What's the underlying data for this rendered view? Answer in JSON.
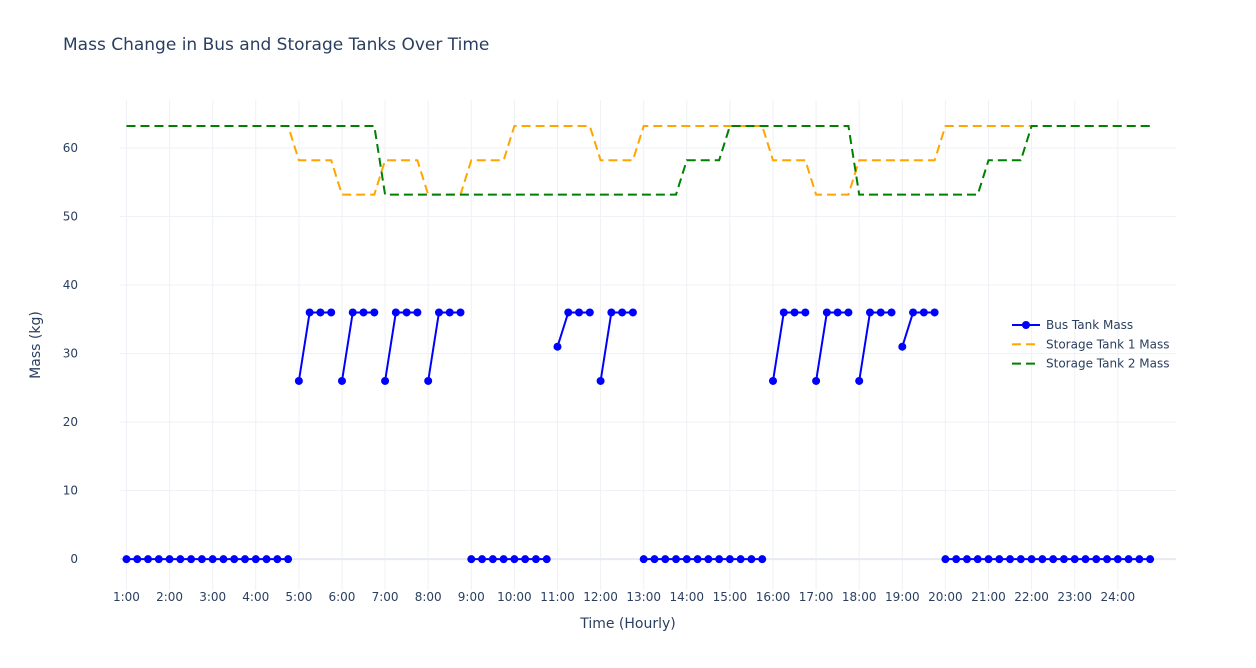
{
  "chart_data": {
    "type": "line",
    "title": "Mass Change in Bus and Storage Tanks Over Time",
    "xlabel": "Time (Hourly)",
    "ylabel": "Mass (kg)",
    "ylim": [
      -4.5,
      67
    ],
    "yticks": [
      0,
      10,
      20,
      30,
      40,
      50,
      60
    ],
    "x_unit": "hour (step 0.25)",
    "xlim": [
      0.85,
      25.35
    ],
    "xticks": [
      {
        "x": 1,
        "label": "1:00"
      },
      {
        "x": 2,
        "label": "2:00"
      },
      {
        "x": 3,
        "label": "3:00"
      },
      {
        "x": 4,
        "label": "4:00"
      },
      {
        "x": 5,
        "label": "5:00"
      },
      {
        "x": 6,
        "label": "6:00"
      },
      {
        "x": 7,
        "label": "7:00"
      },
      {
        "x": 8,
        "label": "8:00"
      },
      {
        "x": 9,
        "label": "9:00"
      },
      {
        "x": 10,
        "label": "10:00"
      },
      {
        "x": 11,
        "label": "11:00"
      },
      {
        "x": 12,
        "label": "12:00"
      },
      {
        "x": 13,
        "label": "13:00"
      },
      {
        "x": 14,
        "label": "14:00"
      },
      {
        "x": 15,
        "label": "15:00"
      },
      {
        "x": 16,
        "label": "16:00"
      },
      {
        "x": 17,
        "label": "17:00"
      },
      {
        "x": 18,
        "label": "18:00"
      },
      {
        "x": 19,
        "label": "19:00"
      },
      {
        "x": 20,
        "label": "20:00"
      },
      {
        "x": 21,
        "label": "21:00"
      },
      {
        "x": 22,
        "label": "22:00"
      },
      {
        "x": 23,
        "label": "23:00"
      },
      {
        "x": 24,
        "label": "24:00"
      }
    ],
    "grid": true,
    "legend_position": "right",
    "series": [
      {
        "name": "Bus Tank Mass",
        "color": "#0000ff",
        "style": "solid-with-markers",
        "points": [
          [
            1,
            0
          ],
          [
            1.25,
            0
          ],
          [
            1.5,
            0
          ],
          [
            1.75,
            0
          ],
          [
            2,
            0
          ],
          [
            2.25,
            0
          ],
          [
            2.5,
            0
          ],
          [
            2.75,
            0
          ],
          [
            3,
            0
          ],
          [
            3.25,
            0
          ],
          [
            3.5,
            0
          ],
          [
            3.75,
            0
          ],
          [
            4,
            0
          ],
          [
            4.25,
            0
          ],
          [
            4.5,
            0
          ],
          [
            4.75,
            0
          ],
          null,
          [
            5,
            26
          ],
          [
            5.25,
            36
          ],
          [
            5.5,
            36
          ],
          [
            5.75,
            36
          ],
          null,
          [
            6,
            26
          ],
          [
            6.25,
            36
          ],
          [
            6.5,
            36
          ],
          [
            6.75,
            36
          ],
          null,
          [
            7,
            26
          ],
          [
            7.25,
            36
          ],
          [
            7.5,
            36
          ],
          [
            7.75,
            36
          ],
          null,
          [
            8,
            26
          ],
          [
            8.25,
            36
          ],
          [
            8.5,
            36
          ],
          [
            8.75,
            36
          ],
          null,
          [
            9,
            0
          ],
          [
            9.25,
            0
          ],
          [
            9.5,
            0
          ],
          [
            9.75,
            0
          ],
          [
            10,
            0
          ],
          [
            10.25,
            0
          ],
          [
            10.5,
            0
          ],
          [
            10.75,
            0
          ],
          null,
          [
            11,
            31
          ],
          [
            11.25,
            36
          ],
          [
            11.5,
            36
          ],
          [
            11.75,
            36
          ],
          null,
          [
            12,
            26
          ],
          [
            12.25,
            36
          ],
          [
            12.5,
            36
          ],
          [
            12.75,
            36
          ],
          null,
          [
            13,
            0
          ],
          [
            13.25,
            0
          ],
          [
            13.5,
            0
          ],
          [
            13.75,
            0
          ],
          [
            14,
            0
          ],
          [
            14.25,
            0
          ],
          [
            14.5,
            0
          ],
          [
            14.75,
            0
          ],
          [
            15,
            0
          ],
          [
            15.25,
            0
          ],
          [
            15.5,
            0
          ],
          [
            15.75,
            0
          ],
          null,
          [
            16,
            26
          ],
          [
            16.25,
            36
          ],
          [
            16.5,
            36
          ],
          [
            16.75,
            36
          ],
          null,
          [
            17,
            26
          ],
          [
            17.25,
            36
          ],
          [
            17.5,
            36
          ],
          [
            17.75,
            36
          ],
          null,
          [
            18,
            26
          ],
          [
            18.25,
            36
          ],
          [
            18.5,
            36
          ],
          [
            18.75,
            36
          ],
          null,
          [
            19,
            31
          ],
          [
            19.25,
            36
          ],
          [
            19.5,
            36
          ],
          [
            19.75,
            36
          ],
          null,
          [
            20,
            0
          ],
          [
            20.25,
            0
          ],
          [
            20.5,
            0
          ],
          [
            20.75,
            0
          ],
          [
            21,
            0
          ],
          [
            21.25,
            0
          ],
          [
            21.5,
            0
          ],
          [
            21.75,
            0
          ],
          [
            22,
            0
          ],
          [
            22.25,
            0
          ],
          [
            22.5,
            0
          ],
          [
            22.75,
            0
          ],
          [
            23,
            0
          ],
          [
            23.25,
            0
          ],
          [
            23.5,
            0
          ],
          [
            23.75,
            0
          ],
          [
            24,
            0
          ],
          [
            24.25,
            0
          ],
          [
            24.5,
            0
          ],
          [
            24.75,
            0
          ]
        ]
      },
      {
        "name": "Storage Tank 1 Mass",
        "color": "#ffa500",
        "style": "dash",
        "points": [
          [
            1,
            63.2
          ],
          [
            4.75,
            63.2
          ],
          [
            5,
            58.2
          ],
          [
            5.75,
            58.2
          ],
          [
            6,
            53.2
          ],
          [
            6.75,
            53.2
          ],
          [
            7,
            58.2
          ],
          [
            7.75,
            58.2
          ],
          [
            8,
            53.2
          ],
          [
            8.75,
            53.2
          ],
          [
            9,
            58.2
          ],
          [
            9.75,
            58.2
          ],
          [
            10,
            63.2
          ],
          [
            11.75,
            63.2
          ],
          [
            12,
            58.2
          ],
          [
            12.75,
            58.2
          ],
          [
            13,
            63.2
          ],
          [
            15.75,
            63.2
          ],
          [
            16,
            58.2
          ],
          [
            16.75,
            58.2
          ],
          [
            17,
            53.2
          ],
          [
            17.75,
            53.2
          ],
          [
            18,
            58.2
          ],
          [
            19.75,
            58.2
          ],
          [
            20,
            63.2
          ],
          [
            24.75,
            63.2
          ]
        ]
      },
      {
        "name": "Storage Tank 2 Mass",
        "color": "#008000",
        "style": "dash",
        "points": [
          [
            1,
            63.2
          ],
          [
            6.75,
            63.2
          ],
          [
            7,
            53.2
          ],
          [
            13.75,
            53.2
          ],
          [
            14,
            58.2
          ],
          [
            14.75,
            58.2
          ],
          [
            15,
            63.2
          ],
          [
            17.75,
            63.2
          ],
          [
            18,
            53.2
          ],
          [
            20.75,
            53.2
          ],
          [
            21,
            58.2
          ],
          [
            21.75,
            58.2
          ],
          [
            22,
            63.2
          ],
          [
            24.75,
            63.2
          ]
        ]
      }
    ]
  }
}
